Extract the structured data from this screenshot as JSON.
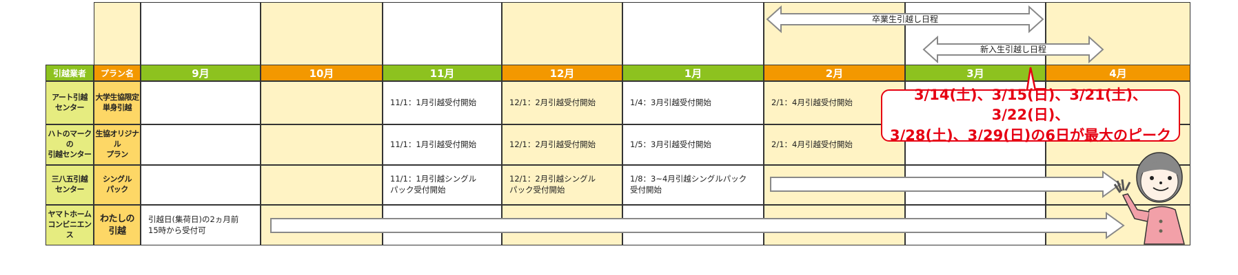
{
  "headers": {
    "company": "引越業者",
    "plan": "プラン名",
    "months": [
      "9月",
      "10月",
      "11月",
      "12月",
      "1月",
      "2月",
      "3月",
      "4月"
    ]
  },
  "colors": {
    "green": "#8dc21f",
    "orange": "#f39800",
    "cream": "#fff3c4",
    "company_bg": "#e6ec80",
    "plan_bg": "#fdd766",
    "callout": "#e60012"
  },
  "schedule_arrows": {
    "graduates": "卒業生引越し日程",
    "freshmen": "新入生引越し日程"
  },
  "rows": [
    {
      "company": "アート引越\nセンター",
      "plan": "大学生協限定\n単身引越",
      "cells": {
        "nov": "11/1：1月引越受付開始",
        "dec": "12/1：2月引越受付開始",
        "jan": "1/4：3月引越受付開始",
        "feb": "2/1：4月引越受付開始"
      }
    },
    {
      "company": "ハトのマークの\n引越センター",
      "plan": "生協オリジナル\nプラン",
      "cells": {
        "nov": "11/1：1月引越受付開始",
        "dec": "12/1：2月引越受付開始",
        "jan": "1/5：3月引越受付開始",
        "feb": "2/1：4月引越受付開始"
      }
    },
    {
      "company": "三八五引越\nセンター",
      "plan": "シングル\nパック",
      "cells": {
        "nov": "11/1：1月引越シングル\nパック受付開始",
        "dec": "12/1：2月引越シングル\nパック受付開始",
        "jan": "1/8：3~4月引越シングルパック\n受付開始"
      }
    },
    {
      "company": "ヤマトホーム\nコンビニエンス",
      "plan": "わたしの\n引越",
      "cells": {
        "sep": "引越日(集荷日)の2ヵ月前\n15時から受付可"
      }
    }
  ],
  "callout": {
    "line1": "3/14(土)、3/15(日)、3/21(土)、3/22(日)、",
    "line2": "3/28(土)、3/29(日)の6日が最大のピーク"
  },
  "mascot_icon": "waving-woman-illustration"
}
